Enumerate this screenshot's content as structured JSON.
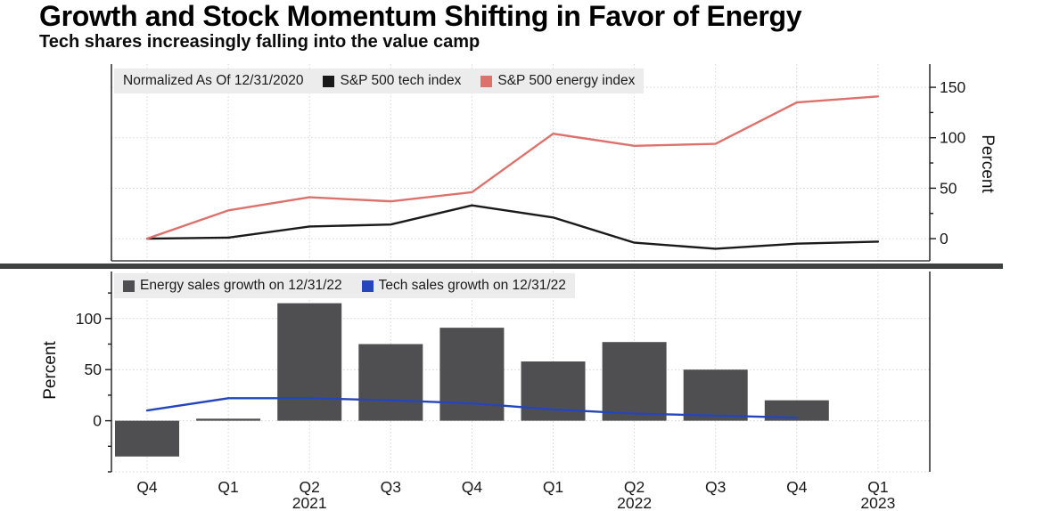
{
  "header": {
    "title": "Growth and Stock Momentum Shifting in Favor of Energy",
    "subtitle": "Tech shares increasingly falling into the value camp"
  },
  "colors": {
    "tech_index_line": "#1a1a1a",
    "energy_index_line": "#dd716b",
    "energy_bar": "#4f4f51",
    "tech_sales_line": "#2546bb",
    "legend_bg": "#ececec",
    "divider": "#3f4040",
    "grid": "#d4d4d4",
    "axis": "#1a1a1a"
  },
  "chart_data": [
    {
      "type": "line",
      "panel": "top",
      "title": "Normalized As Of 12/31/2020",
      "categories": [
        "Q4",
        "Q1",
        "Q2",
        "Q3",
        "Q4",
        "Q1",
        "Q2",
        "Q3",
        "Q4",
        "Q1"
      ],
      "series": [
        {
          "name": "S&P 500 tech index",
          "color": "#1a1a1a",
          "values": [
            0,
            1,
            12,
            14,
            33,
            21,
            -4,
            -10,
            -5,
            -3
          ]
        },
        {
          "name": "S&P 500 energy index",
          "color": "#dd716b",
          "values": [
            0,
            28,
            41,
            37,
            46,
            104,
            92,
            94,
            135,
            141
          ]
        }
      ],
      "ylabel": "Percent",
      "yticks": [
        0,
        50,
        100,
        150
      ],
      "ylim": [
        -22,
        173
      ],
      "axis_side": "right",
      "grid": true,
      "legend_position": "top-left"
    },
    {
      "type": "bar",
      "panel": "bottom",
      "categories": [
        "Q4",
        "Q1",
        "Q2",
        "Q3",
        "Q4",
        "Q1",
        "Q2",
        "Q3",
        "Q4",
        "Q1"
      ],
      "year_labels": [
        {
          "index": 2,
          "label": "2021"
        },
        {
          "index": 6,
          "label": "2022"
        },
        {
          "index": 9,
          "label": "2023"
        }
      ],
      "series": [
        {
          "name": "Energy sales growth on 12/31/22",
          "type": "bar",
          "color": "#4f4f51",
          "values": [
            -35,
            2,
            115,
            75,
            91,
            58,
            77,
            50,
            20,
            null
          ]
        },
        {
          "name": "Tech sales growth on 12/31/22",
          "type": "line",
          "color": "#2546bb",
          "values": [
            10,
            22,
            22,
            20,
            17,
            11,
            7,
            5,
            3,
            null
          ]
        }
      ],
      "ylabel": "Percent",
      "yticks": [
        0,
        50,
        100
      ],
      "ylim": [
        -50,
        146
      ],
      "axis_side": "left",
      "grid": true,
      "legend_position": "top-left"
    }
  ]
}
